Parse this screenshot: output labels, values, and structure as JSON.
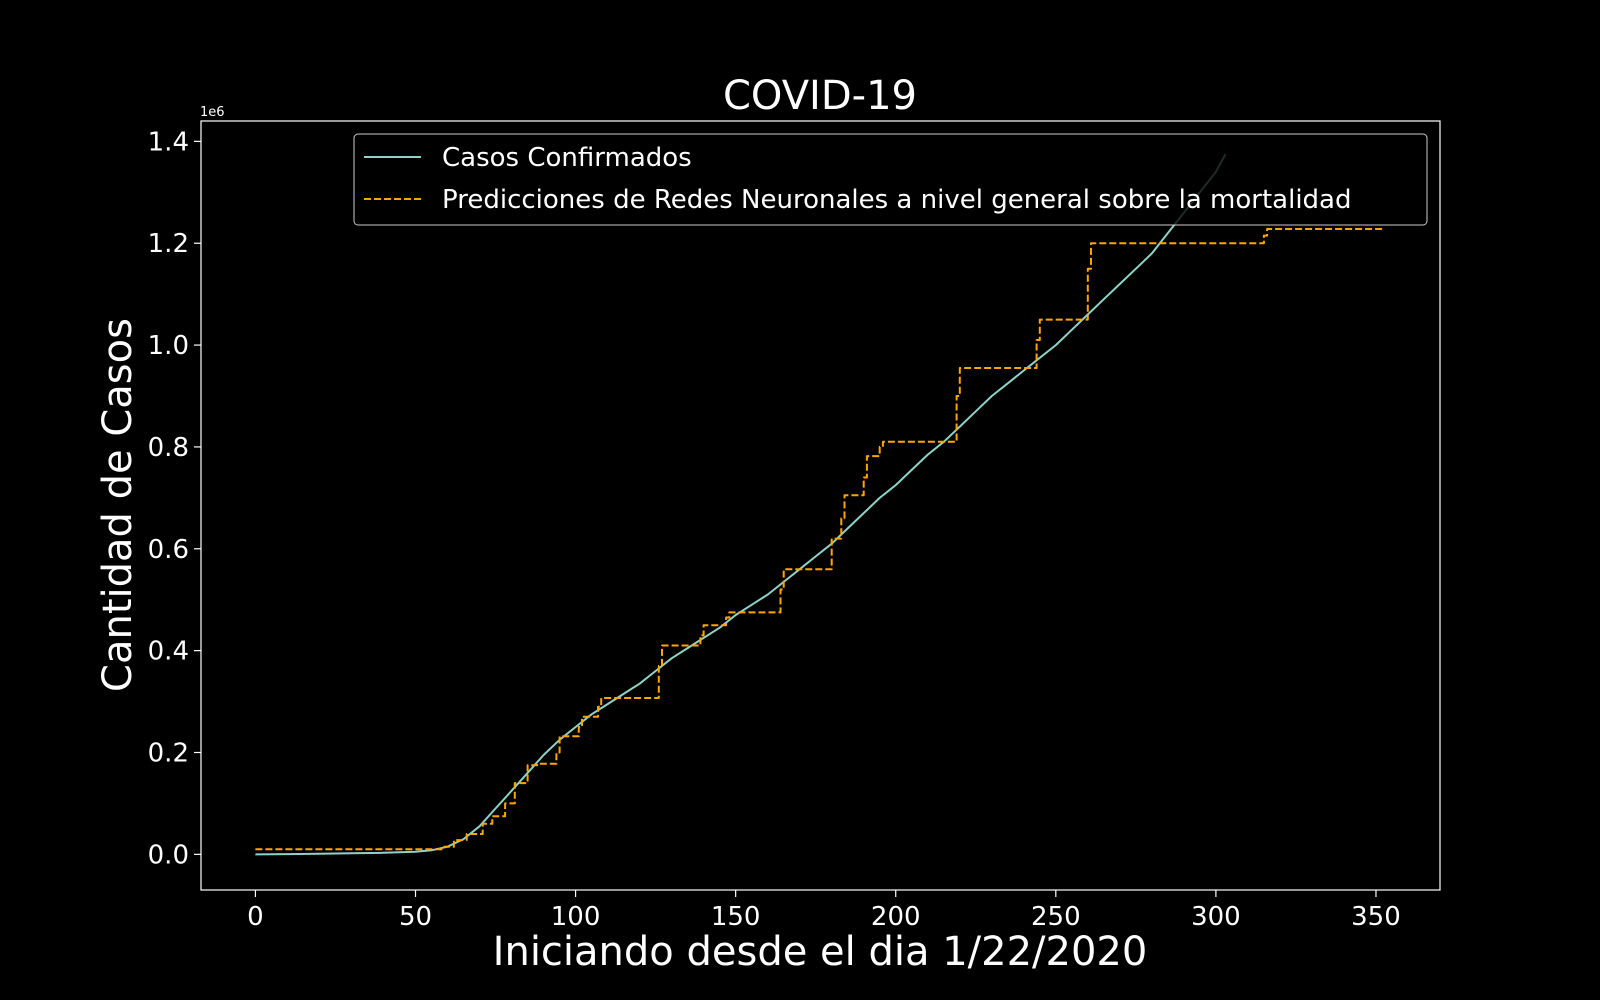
{
  "chart_data": {
    "type": "line",
    "title": "COVID-19",
    "xlabel": "Iniciando desde el dia 1/22/2020",
    "ylabel": "Cantidad de Casos",
    "y_offset_label": "1e6",
    "xlim": [
      -17,
      370
    ],
    "ylim": [
      -0.07,
      1.44
    ],
    "x_ticks": [
      0,
      50,
      100,
      150,
      200,
      250,
      300,
      350
    ],
    "y_ticks": [
      0.0,
      0.2,
      0.4,
      0.6,
      0.8,
      1.0,
      1.2,
      1.4
    ],
    "x_tick_labels": [
      "0",
      "50",
      "100",
      "150",
      "200",
      "250",
      "300",
      "350"
    ],
    "y_tick_labels": [
      "0.0",
      "0.2",
      "0.4",
      "0.6",
      "0.8",
      "1.0",
      "1.2",
      "1.4"
    ],
    "grid": false,
    "legend_position": "top-center",
    "series": [
      {
        "name": "Casos Confirmados",
        "color": "#8dd3c7",
        "style": "solid",
        "x": [
          0,
          10,
          20,
          30,
          40,
          50,
          55,
          60,
          65,
          70,
          75,
          80,
          85,
          90,
          95,
          100,
          105,
          110,
          115,
          120,
          125,
          130,
          135,
          140,
          145,
          150,
          155,
          160,
          165,
          170,
          175,
          180,
          185,
          190,
          195,
          200,
          205,
          210,
          215,
          220,
          225,
          230,
          235,
          240,
          245,
          250,
          255,
          260,
          265,
          270,
          275,
          280,
          285,
          290,
          295,
          300,
          303
        ],
        "y": [
          0.0,
          0.0005,
          0.001,
          0.002,
          0.003,
          0.005,
          0.008,
          0.015,
          0.03,
          0.055,
          0.09,
          0.125,
          0.16,
          0.195,
          0.225,
          0.25,
          0.275,
          0.295,
          0.315,
          0.335,
          0.36,
          0.385,
          0.405,
          0.425,
          0.445,
          0.47,
          0.49,
          0.51,
          0.535,
          0.56,
          0.585,
          0.61,
          0.64,
          0.67,
          0.7,
          0.725,
          0.755,
          0.785,
          0.81,
          0.84,
          0.87,
          0.9,
          0.925,
          0.95,
          0.975,
          1.0,
          1.03,
          1.06,
          1.09,
          1.12,
          1.15,
          1.18,
          1.22,
          1.26,
          1.3,
          1.34,
          1.375
        ]
      },
      {
        "name": "Predicciones de Redes Neuronales a nivel general sobre la mortalidad",
        "color": "#ffa500",
        "style": "dashed",
        "x": [
          0,
          59,
          59,
          62,
          62,
          66,
          66,
          71,
          71,
          74,
          74,
          78,
          78,
          81,
          81,
          85,
          85,
          88,
          88,
          94,
          94,
          95,
          95,
          101,
          101,
          102,
          102,
          107,
          107,
          108,
          108,
          126,
          126,
          127,
          127,
          139,
          139,
          140,
          140,
          147,
          147,
          148,
          148,
          164,
          164,
          165,
          165,
          180,
          180,
          183,
          183,
          184,
          184,
          190,
          190,
          191,
          191,
          195,
          195,
          196,
          196,
          219,
          219,
          220,
          220,
          244,
          244,
          245,
          245,
          260,
          260,
          261,
          261,
          315,
          315,
          316,
          316,
          352
        ],
        "y": [
          0.01,
          0.01,
          0.015,
          0.015,
          0.028,
          0.028,
          0.04,
          0.04,
          0.06,
          0.06,
          0.075,
          0.075,
          0.1,
          0.1,
          0.14,
          0.14,
          0.175,
          0.175,
          0.178,
          0.178,
          0.2,
          0.2,
          0.232,
          0.232,
          0.25,
          0.25,
          0.27,
          0.27,
          0.29,
          0.29,
          0.307,
          0.307,
          0.37,
          0.37,
          0.41,
          0.41,
          0.43,
          0.43,
          0.45,
          0.45,
          0.465,
          0.465,
          0.475,
          0.475,
          0.52,
          0.52,
          0.56,
          0.56,
          0.62,
          0.62,
          0.66,
          0.66,
          0.705,
          0.705,
          0.74,
          0.74,
          0.782,
          0.782,
          0.8,
          0.8,
          0.81,
          0.81,
          0.9,
          0.9,
          0.955,
          0.955,
          1.01,
          1.01,
          1.05,
          1.05,
          1.15,
          1.15,
          1.2,
          1.2,
          1.215,
          1.215,
          1.228,
          1.228
        ]
      }
    ]
  }
}
